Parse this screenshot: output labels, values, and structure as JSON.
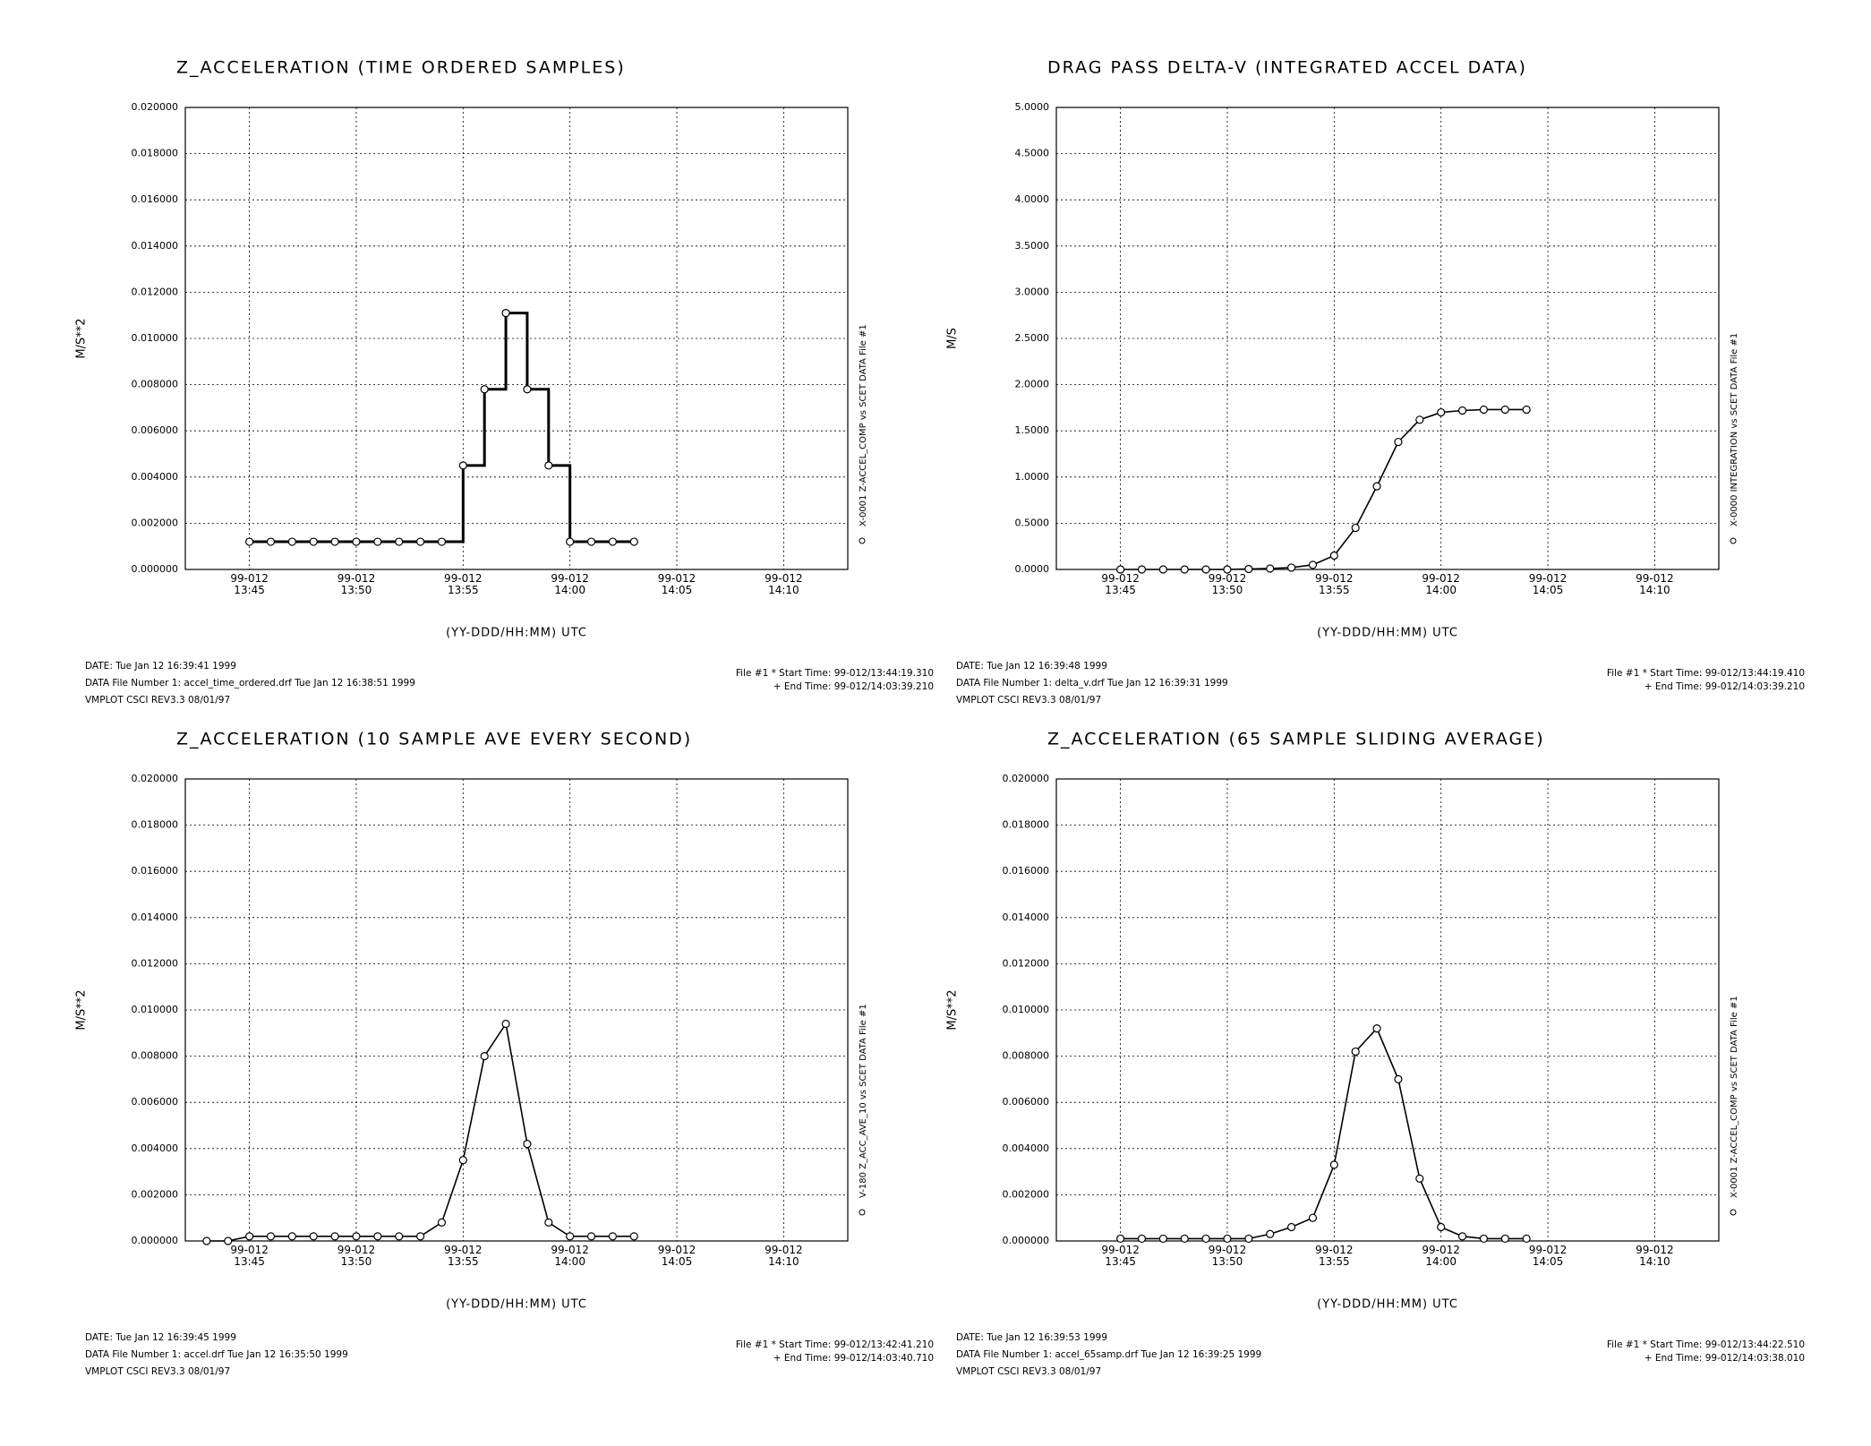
{
  "chart_data": [
    {
      "type": "line",
      "title": "Z_ACCELERATION (TIME ORDERED SAMPLES)",
      "y_label": "M/S**2",
      "x_label": "(YY-DDD/HH:MM) UTC",
      "side_label": "X-0001 Z-ACCEL_COMP vs SCET  DATA File #1",
      "footer": {
        "date": "DATE: Tue Jan 12 16:39:41 1999",
        "data_file": "DATA File Number 1: accel_time_ordered.drf  Tue Jan 12 16:38:51 1999",
        "version": "VMPLOT CSCI REV3.3 08/01/97",
        "start_time": "File #1 * Start Time: 99-012/13:44:19.310",
        "end_time": "+   End Time: 99-012/14:03:39.210"
      },
      "x": [
        "99-012/13:45",
        "99-012/13:46",
        "99-012/13:47",
        "99-012/13:48",
        "99-012/13:49",
        "99-012/13:50",
        "99-012/13:51",
        "99-012/13:52",
        "99-012/13:53",
        "99-012/13:54",
        "99-012/13:55",
        "99-012/13:56",
        "99-012/13:57",
        "99-012/13:58",
        "99-012/13:59",
        "99-012/14:00",
        "99-012/14:01",
        "99-012/14:02",
        "99-012/14:03"
      ],
      "values": [
        0.0012,
        0.0012,
        0.0012,
        0.0012,
        0.0012,
        0.0012,
        0.0012,
        0.0012,
        0.0012,
        0.0012,
        0.0045,
        0.0078,
        0.0111,
        0.0078,
        0.0045,
        0.0012,
        0.0012,
        0.0012,
        0.0012
      ],
      "color": "#000000",
      "markers": true,
      "step": true,
      "grid": true,
      "xlim": [
        "99-012/13:42",
        "99-012/14:13"
      ],
      "xticks": [
        {
          "value": "99-012/13:45",
          "label": "99-012\n13:45"
        },
        {
          "value": "99-012/13:50",
          "label": "99-012\n13:50"
        },
        {
          "value": "99-012/13:55",
          "label": "99-012\n13:55"
        },
        {
          "value": "99-012/14:00",
          "label": "99-012\n14:00"
        },
        {
          "value": "99-012/14:05",
          "label": "99-012\n14:05"
        },
        {
          "value": "99-012/14:10",
          "label": "99-012\n14:10"
        }
      ],
      "ylim": [
        0,
        0.02
      ],
      "yticks": [
        {
          "value": 0,
          "label": "0.000000"
        },
        {
          "value": 0.002,
          "label": "0.002000"
        },
        {
          "value": 0.004,
          "label": "0.004000"
        },
        {
          "value": 0.006,
          "label": "0.006000"
        },
        {
          "value": 0.008,
          "label": "0.008000"
        },
        {
          "value": 0.01,
          "label": "0.010000"
        },
        {
          "value": 0.012,
          "label": "0.012000"
        },
        {
          "value": 0.014,
          "label": "0.014000"
        },
        {
          "value": 0.016,
          "label": "0.016000"
        },
        {
          "value": 0.018,
          "label": "0.018000"
        },
        {
          "value": 0.02,
          "label": "0.020000"
        }
      ]
    },
    {
      "type": "line",
      "title": "DRAG PASS DELTA-V (INTEGRATED ACCEL DATA)",
      "y_label": "M/S",
      "x_label": "(YY-DDD/HH:MM) UTC",
      "side_label": "X-0000 INTEGRATION vs SCET  DATA File #1",
      "footer": {
        "date": "DATE: Tue Jan 12 16:39:48 1999",
        "data_file": "DATA File Number 1: delta_v.drf  Tue Jan 12 16:39:31 1999",
        "version": "VMPLOT CSCI REV3.3 08/01/97",
        "start_time": "File #1 * Start Time: 99-012/13:44:19.410",
        "end_time": "+   End Time: 99-012/14:03:39.210"
      },
      "x": [
        "99-012/13:45",
        "99-012/13:46",
        "99-012/13:47",
        "99-012/13:48",
        "99-012/13:49",
        "99-012/13:50",
        "99-012/13:51",
        "99-012/13:52",
        "99-012/13:53",
        "99-012/13:54",
        "99-012/13:55",
        "99-012/13:56",
        "99-012/13:57",
        "99-012/13:58",
        "99-012/13:59",
        "99-012/14:00",
        "99-012/14:01",
        "99-012/14:02",
        "99-012/14:03",
        "99-012/14:04"
      ],
      "values": [
        0,
        0,
        0,
        0,
        0,
        0,
        0.005,
        0.01,
        0.02,
        0.05,
        0.15,
        0.45,
        0.9,
        1.38,
        1.62,
        1.7,
        1.72,
        1.73,
        1.73,
        1.73
      ],
      "color": "#000000",
      "markers": true,
      "step": false,
      "grid": true,
      "xlim": [
        "99-012/13:42",
        "99-012/14:13"
      ],
      "xticks": [
        {
          "value": "99-012/13:45",
          "label": "99-012\n13:45"
        },
        {
          "value": "99-012/13:50",
          "label": "99-012\n13:50"
        },
        {
          "value": "99-012/13:55",
          "label": "99-012\n13:55"
        },
        {
          "value": "99-012/14:00",
          "label": "99-012\n14:00"
        },
        {
          "value": "99-012/14:05",
          "label": "99-012\n14:05"
        },
        {
          "value": "99-012/14:10",
          "label": "99-012\n14:10"
        }
      ],
      "ylim": [
        0,
        5
      ],
      "yticks": [
        {
          "value": 0,
          "label": "0.0000"
        },
        {
          "value": 0.5,
          "label": "0.5000"
        },
        {
          "value": 1,
          "label": "1.0000"
        },
        {
          "value": 1.5,
          "label": "1.5000"
        },
        {
          "value": 2,
          "label": "2.0000"
        },
        {
          "value": 2.5,
          "label": "2.5000"
        },
        {
          "value": 3,
          "label": "3.0000"
        },
        {
          "value": 3.5,
          "label": "3.5000"
        },
        {
          "value": 4,
          "label": "4.0000"
        },
        {
          "value": 4.5,
          "label": "4.5000"
        },
        {
          "value": 5,
          "label": "5.0000"
        }
      ]
    },
    {
      "type": "line",
      "title": "Z_ACCELERATION (10 SAMPLE AVE EVERY SECOND)",
      "y_label": "M/S**2",
      "x_label": "(YY-DDD/HH:MM) UTC",
      "side_label": "V-180 Z_ACC_AVE_10 vs SCET  DATA File #1",
      "footer": {
        "date": "DATE: Tue Jan 12 16:39:45 1999",
        "data_file": "DATA File Number 1: accel.drf  Tue Jan 12 16:35:50 1999",
        "version": "VMPLOT CSCI REV3.3 08/01/97",
        "start_time": "File #1 * Start Time: 99-012/13:42:41.210",
        "end_time": "+   End Time: 99-012/14:03:40.710"
      },
      "x": [
        "99-012/13:43",
        "99-012/13:44",
        "99-012/13:45",
        "99-012/13:46",
        "99-012/13:47",
        "99-012/13:48",
        "99-012/13:49",
        "99-012/13:50",
        "99-012/13:51",
        "99-012/13:52",
        "99-012/13:53",
        "99-012/13:54",
        "99-012/13:55",
        "99-012/13:56",
        "99-012/13:57",
        "99-012/13:58",
        "99-012/13:59",
        "99-012/14:00",
        "99-012/14:01",
        "99-012/14:02",
        "99-012/14:03"
      ],
      "values": [
        0,
        0,
        0.0002,
        0.0002,
        0.0002,
        0.0002,
        0.0002,
        0.0002,
        0.0002,
        0.0002,
        0.0002,
        0.0008,
        0.0035,
        0.008,
        0.0094,
        0.0042,
        0.0008,
        0.0002,
        0.0002,
        0.0002,
        0.0002
      ],
      "color": "#000000",
      "markers": true,
      "step": false,
      "grid": true,
      "xlim": [
        "99-012/13:42",
        "99-012/14:13"
      ],
      "xticks": [
        {
          "value": "99-012/13:45",
          "label": "99-012\n13:45"
        },
        {
          "value": "99-012/13:50",
          "label": "99-012\n13:50"
        },
        {
          "value": "99-012/13:55",
          "label": "99-012\n13:55"
        },
        {
          "value": "99-012/14:00",
          "label": "99-012\n14:00"
        },
        {
          "value": "99-012/14:05",
          "label": "99-012\n14:05"
        },
        {
          "value": "99-012/14:10",
          "label": "99-012\n14:10"
        }
      ],
      "ylim": [
        0,
        0.02
      ],
      "yticks": [
        {
          "value": 0,
          "label": "0.000000"
        },
        {
          "value": 0.002,
          "label": "0.002000"
        },
        {
          "value": 0.004,
          "label": "0.004000"
        },
        {
          "value": 0.006,
          "label": "0.006000"
        },
        {
          "value": 0.008,
          "label": "0.008000"
        },
        {
          "value": 0.01,
          "label": "0.010000"
        },
        {
          "value": 0.012,
          "label": "0.012000"
        },
        {
          "value": 0.014,
          "label": "0.014000"
        },
        {
          "value": 0.016,
          "label": "0.016000"
        },
        {
          "value": 0.018,
          "label": "0.018000"
        },
        {
          "value": 0.02,
          "label": "0.020000"
        }
      ]
    },
    {
      "type": "line",
      "title": "Z_ACCELERATION (65 SAMPLE SLIDING AVERAGE)",
      "y_label": "M/S**2",
      "x_label": "(YY-DDD/HH:MM) UTC",
      "side_label": "X-0001 Z-ACCEL_COMP vs SCET  DATA File #1",
      "footer": {
        "date": "DATE: Tue Jan 12 16:39:53 1999",
        "data_file": "DATA File Number 1: accel_65samp.drf  Tue Jan 12 16:39:25 1999",
        "version": "VMPLOT CSCI REV3.3 08/01/97",
        "start_time": "File #1 * Start Time: 99-012/13:44:22.510",
        "end_time": "+   End Time: 99-012/14:03:38.010"
      },
      "x": [
        "99-012/13:45",
        "99-012/13:46",
        "99-012/13:47",
        "99-012/13:48",
        "99-012/13:49",
        "99-012/13:50",
        "99-012/13:51",
        "99-012/13:52",
        "99-012/13:53",
        "99-012/13:54",
        "99-012/13:55",
        "99-012/13:56",
        "99-012/13:57",
        "99-012/13:58",
        "99-012/13:59",
        "99-012/14:00",
        "99-012/14:01",
        "99-012/14:02",
        "99-012/14:03",
        "99-012/14:04"
      ],
      "values": [
        0.0001,
        0.0001,
        0.0001,
        0.0001,
        0.0001,
        0.0001,
        0.0001,
        0.0003,
        0.0006,
        0.001,
        0.0033,
        0.0082,
        0.0092,
        0.007,
        0.0027,
        0.0006,
        0.0002,
        0.0001,
        0.0001,
        0.0001
      ],
      "color": "#000000",
      "markers": true,
      "step": false,
      "grid": true,
      "xlim": [
        "99-012/13:42",
        "99-012/14:13"
      ],
      "xticks": [
        {
          "value": "99-012/13:45",
          "label": "99-012\n13:45"
        },
        {
          "value": "99-012/13:50",
          "label": "99-012\n13:50"
        },
        {
          "value": "99-012/13:55",
          "label": "99-012\n13:55"
        },
        {
          "value": "99-012/14:00",
          "label": "99-012\n14:00"
        },
        {
          "value": "99-012/14:05",
          "label": "99-012\n14:05"
        },
        {
          "value": "99-012/14:10",
          "label": "99-012\n14:10"
        }
      ],
      "ylim": [
        0,
        0.02
      ],
      "yticks": [
        {
          "value": 0,
          "label": "0.000000"
        },
        {
          "value": 0.002,
          "label": "0.002000"
        },
        {
          "value": 0.004,
          "label": "0.004000"
        },
        {
          "value": 0.006,
          "label": "0.006000"
        },
        {
          "value": 0.008,
          "label": "0.008000"
        },
        {
          "value": 0.01,
          "label": "0.010000"
        },
        {
          "value": 0.012,
          "label": "0.012000"
        },
        {
          "value": 0.014,
          "label": "0.014000"
        },
        {
          "value": 0.016,
          "label": "0.016000"
        },
        {
          "value": 0.018,
          "label": "0.018000"
        },
        {
          "value": 0.02,
          "label": "0.020000"
        }
      ]
    }
  ]
}
